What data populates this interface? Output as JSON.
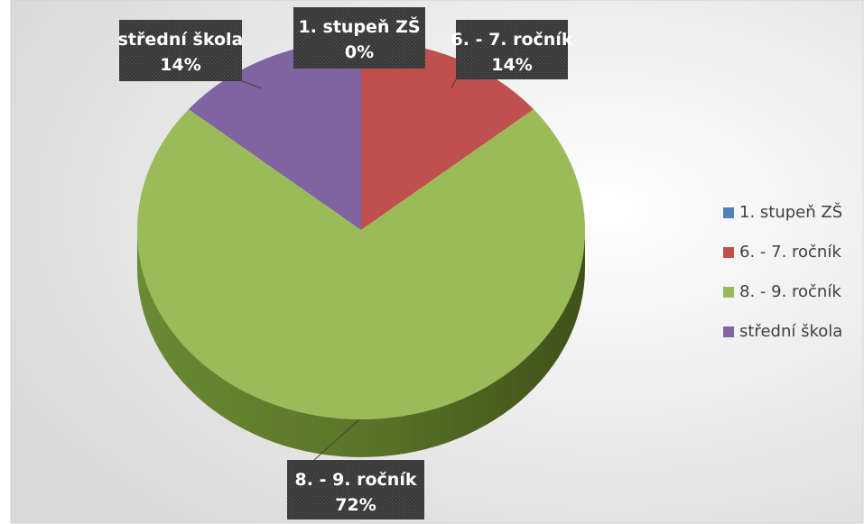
{
  "chart_data": {
    "type": "pie",
    "categories": [
      "1. stupeň ZŠ",
      "6. - 7. ročník",
      "8. - 9. ročník",
      "střední škola"
    ],
    "values": [
      0,
      14,
      72,
      14
    ],
    "value_labels": [
      "0%",
      "14%",
      "72%",
      "14%"
    ],
    "colors": [
      "#4f81bd",
      "#c0504d",
      "#9bbb59",
      "#8064a2"
    ],
    "legend": "right"
  }
}
